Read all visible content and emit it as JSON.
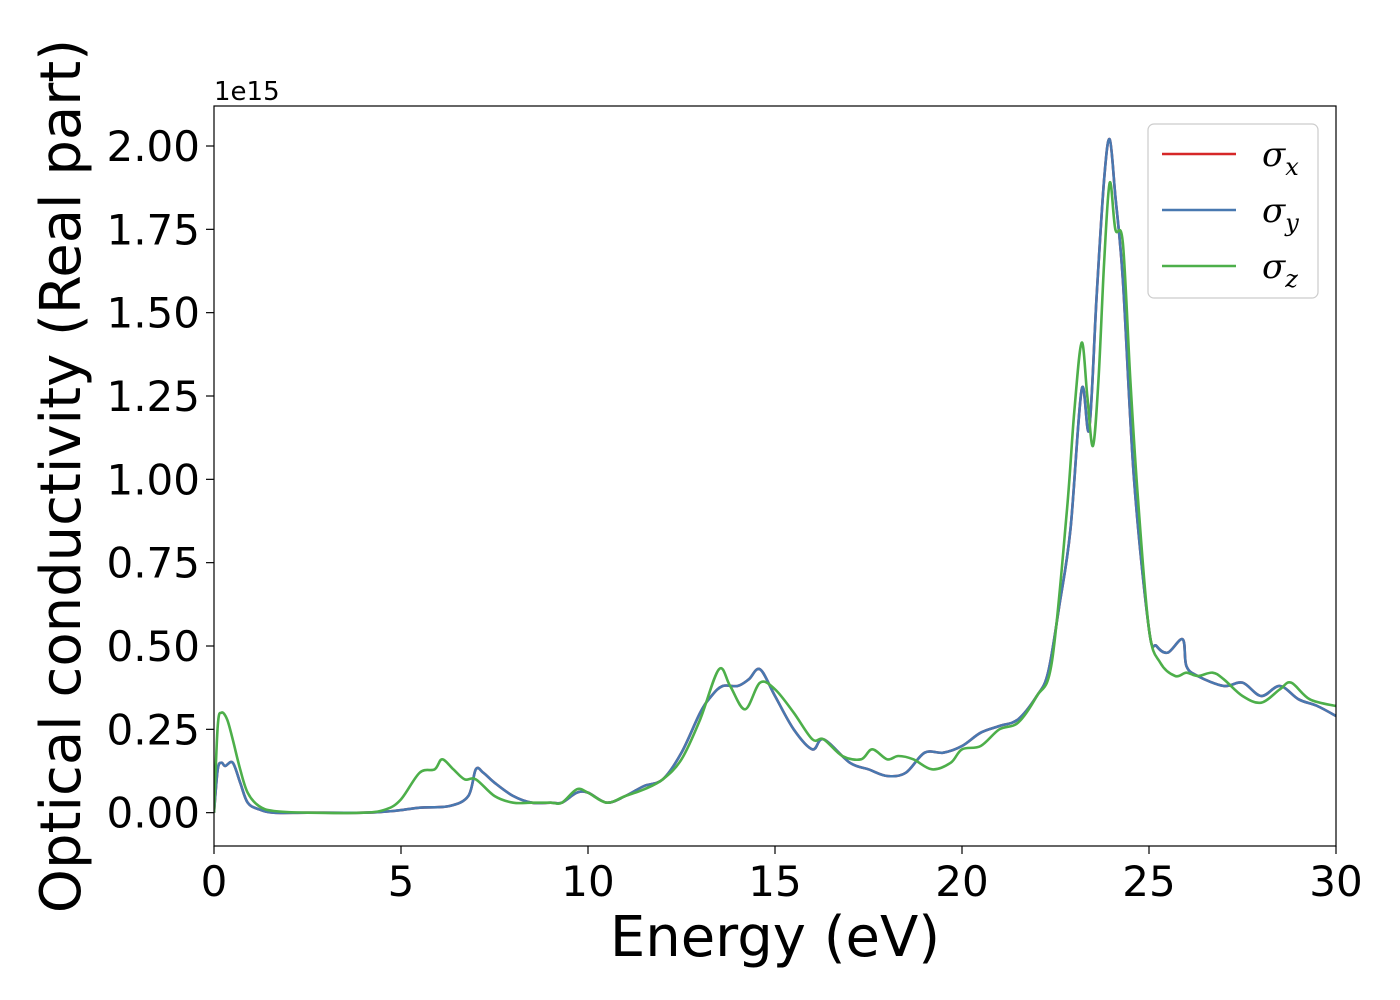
{
  "chart_data": {
    "type": "line",
    "xlabel": "Energy (eV)",
    "ylabel": "Optical conductivity (Real part)",
    "y_offset_label": "1e15",
    "xlim": [
      0,
      30
    ],
    "ylim": [
      -0.1,
      2.12
    ],
    "x_ticks": [
      0,
      5,
      10,
      15,
      20,
      25,
      30
    ],
    "x_tick_labels": [
      "0",
      "5",
      "10",
      "15",
      "20",
      "25",
      "30"
    ],
    "y_ticks": [
      0,
      0.25,
      0.5,
      0.75,
      1.0,
      1.25,
      1.5,
      1.75,
      2.0
    ],
    "y_tick_labels": [
      "0.00",
      "0.25",
      "0.50",
      "0.75",
      "1.00",
      "1.25",
      "1.50",
      "1.75",
      "2.00"
    ],
    "grid": false,
    "legend_position": "top-right",
    "series": [
      {
        "name": "σx",
        "symbol": "σ",
        "subscript": "x",
        "color": "#d62728",
        "x": [
          0,
          0.1,
          0.2,
          0.3,
          0.5,
          0.7,
          0.9,
          1.2,
          1.6,
          2.5,
          4,
          4.8,
          5.5,
          6.3,
          6.8,
          7.0,
          7.2,
          7.5,
          8,
          8.5,
          9,
          9.3,
          9.7,
          10,
          10.5,
          11,
          11.5,
          12,
          12.5,
          13,
          13.3,
          13.6,
          14,
          14.3,
          14.6,
          15,
          15.5,
          16,
          16.3,
          17,
          17.5,
          18,
          18.5,
          19,
          19.5,
          20,
          20.5,
          21,
          21.5,
          22,
          22.3,
          22.6,
          22.9,
          23.2,
          23.4,
          23.6,
          23.8,
          23.95,
          24.1,
          24.3,
          24.6,
          25,
          25.2,
          25.5,
          25.9,
          26.0,
          26.3,
          27,
          27.5,
          28,
          28.5,
          29,
          29.5,
          30
        ],
        "y": [
          0.0,
          0.13,
          0.15,
          0.14,
          0.15,
          0.09,
          0.03,
          0.01,
          0.0,
          0.0,
          0.0,
          0.005,
          0.015,
          0.02,
          0.05,
          0.13,
          0.12,
          0.09,
          0.05,
          0.03,
          0.03,
          0.03,
          0.06,
          0.06,
          0.03,
          0.05,
          0.08,
          0.1,
          0.18,
          0.3,
          0.35,
          0.38,
          0.38,
          0.4,
          0.43,
          0.35,
          0.25,
          0.19,
          0.22,
          0.15,
          0.13,
          0.11,
          0.12,
          0.18,
          0.18,
          0.2,
          0.24,
          0.26,
          0.28,
          0.35,
          0.42,
          0.62,
          0.85,
          1.27,
          1.15,
          1.55,
          1.9,
          2.02,
          1.85,
          1.6,
          1.0,
          0.55,
          0.5,
          0.48,
          0.52,
          0.44,
          0.41,
          0.38,
          0.39,
          0.35,
          0.38,
          0.34,
          0.32,
          0.29
        ]
      },
      {
        "name": "σy",
        "symbol": "σ",
        "subscript": "y",
        "color": "#4878b0",
        "x": [
          0,
          0.1,
          0.2,
          0.3,
          0.5,
          0.7,
          0.9,
          1.2,
          1.6,
          2.5,
          4,
          4.8,
          5.5,
          6.3,
          6.8,
          7.0,
          7.2,
          7.5,
          8,
          8.5,
          9,
          9.3,
          9.7,
          10,
          10.5,
          11,
          11.5,
          12,
          12.5,
          13,
          13.3,
          13.6,
          14,
          14.3,
          14.6,
          15,
          15.5,
          16,
          16.3,
          17,
          17.5,
          18,
          18.5,
          19,
          19.5,
          20,
          20.5,
          21,
          21.5,
          22,
          22.3,
          22.6,
          22.9,
          23.2,
          23.4,
          23.6,
          23.8,
          23.95,
          24.1,
          24.3,
          24.6,
          25,
          25.2,
          25.5,
          25.9,
          26.0,
          26.3,
          27,
          27.5,
          28,
          28.5,
          29,
          29.5,
          30
        ],
        "y": [
          0.0,
          0.13,
          0.15,
          0.14,
          0.15,
          0.09,
          0.03,
          0.01,
          0.0,
          0.0,
          0.0,
          0.005,
          0.015,
          0.02,
          0.05,
          0.13,
          0.12,
          0.09,
          0.05,
          0.03,
          0.03,
          0.03,
          0.06,
          0.06,
          0.03,
          0.05,
          0.08,
          0.1,
          0.18,
          0.3,
          0.35,
          0.38,
          0.38,
          0.4,
          0.43,
          0.35,
          0.25,
          0.19,
          0.22,
          0.15,
          0.13,
          0.11,
          0.12,
          0.18,
          0.18,
          0.2,
          0.24,
          0.26,
          0.28,
          0.35,
          0.42,
          0.62,
          0.85,
          1.27,
          1.15,
          1.55,
          1.9,
          2.02,
          1.85,
          1.6,
          1.0,
          0.55,
          0.5,
          0.48,
          0.52,
          0.44,
          0.41,
          0.38,
          0.39,
          0.35,
          0.38,
          0.34,
          0.32,
          0.29
        ]
      },
      {
        "name": "σz",
        "symbol": "σ",
        "subscript": "z",
        "color": "#4daf4a",
        "x": [
          0,
          0.1,
          0.2,
          0.35,
          0.5,
          0.7,
          0.9,
          1.2,
          1.6,
          2.5,
          4,
          4.6,
          5.0,
          5.5,
          5.9,
          6.1,
          6.4,
          6.7,
          7.0,
          7.5,
          8,
          8.5,
          9,
          9.3,
          9.7,
          10,
          10.5,
          11,
          11.5,
          12,
          12.5,
          13,
          13.5,
          13.8,
          14.2,
          14.6,
          15,
          15.5,
          16,
          16.3,
          16.8,
          17.3,
          17.6,
          18,
          18.3,
          18.7,
          19.2,
          19.7,
          20,
          20.5,
          21,
          21.5,
          22,
          22.4,
          22.8,
          23.0,
          23.2,
          23.35,
          23.5,
          23.65,
          23.8,
          23.95,
          24.1,
          24.3,
          24.5,
          24.7,
          25,
          25.3,
          25.7,
          26.0,
          26.3,
          26.7,
          27.0,
          27.5,
          28,
          28.5,
          28.8,
          29.3,
          30
        ],
        "y": [
          0.0,
          0.26,
          0.3,
          0.28,
          0.22,
          0.13,
          0.06,
          0.02,
          0.005,
          0.0,
          0.0,
          0.01,
          0.04,
          0.12,
          0.13,
          0.16,
          0.13,
          0.1,
          0.1,
          0.05,
          0.03,
          0.03,
          0.03,
          0.03,
          0.07,
          0.06,
          0.03,
          0.05,
          0.07,
          0.1,
          0.16,
          0.28,
          0.43,
          0.38,
          0.31,
          0.39,
          0.37,
          0.3,
          0.22,
          0.22,
          0.17,
          0.16,
          0.19,
          0.16,
          0.17,
          0.16,
          0.13,
          0.15,
          0.19,
          0.2,
          0.25,
          0.27,
          0.35,
          0.45,
          0.9,
          1.2,
          1.41,
          1.25,
          1.1,
          1.3,
          1.65,
          1.89,
          1.75,
          1.71,
          1.3,
          0.95,
          0.55,
          0.45,
          0.41,
          0.42,
          0.41,
          0.42,
          0.4,
          0.35,
          0.33,
          0.37,
          0.39,
          0.34,
          0.32
        ]
      }
    ]
  }
}
